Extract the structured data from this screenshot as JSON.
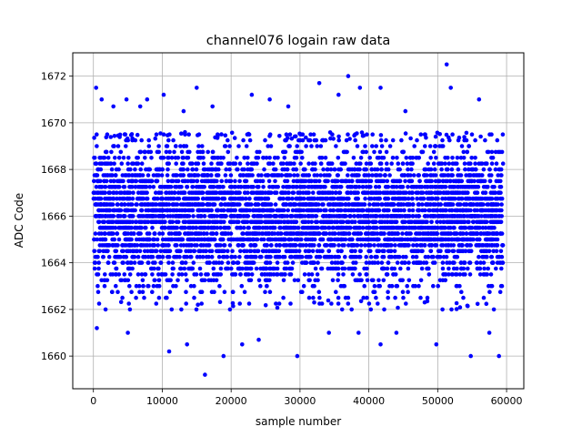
{
  "chart_data": {
    "type": "scatter",
    "title": "channel076 logain raw data",
    "xlabel": "sample number",
    "ylabel": "ADC Code",
    "xlim": [
      -3000,
      62500
    ],
    "ylim": [
      1658.6,
      1673.0
    ],
    "x_ticks": [
      0,
      10000,
      20000,
      30000,
      40000,
      50000,
      60000
    ],
    "y_ticks": [
      1660,
      1662,
      1664,
      1666,
      1668,
      1670,
      1672
    ],
    "x_tick_labels": [
      "0",
      "10000",
      "20000",
      "30000",
      "40000",
      "50000",
      "60000"
    ],
    "y_tick_labels": [
      "1660",
      "1662",
      "1664",
      "1666",
      "1668",
      "1670",
      "1672"
    ],
    "grid": true,
    "series": [
      {
        "color": "#0000ff",
        "marker": "dot",
        "sample_range": [
          0,
          59500
        ],
        "dense_band": [
          1662.0,
          1669.6
        ],
        "dense_mean": 1666.0,
        "outliers": [
          {
            "x": 400,
            "y": 1671.5
          },
          {
            "x": 1200,
            "y": 1671.0
          },
          {
            "x": 2900,
            "y": 1670.7
          },
          {
            "x": 4800,
            "y": 1671.0
          },
          {
            "x": 6800,
            "y": 1670.7
          },
          {
            "x": 7800,
            "y": 1671.0
          },
          {
            "x": 10200,
            "y": 1671.2
          },
          {
            "x": 13100,
            "y": 1670.5
          },
          {
            "x": 15000,
            "y": 1671.5
          },
          {
            "x": 17300,
            "y": 1670.7
          },
          {
            "x": 23000,
            "y": 1671.2
          },
          {
            "x": 25600,
            "y": 1671.0
          },
          {
            "x": 28300,
            "y": 1670.7
          },
          {
            "x": 32800,
            "y": 1671.7
          },
          {
            "x": 35600,
            "y": 1671.2
          },
          {
            "x": 37000,
            "y": 1672.0
          },
          {
            "x": 38700,
            "y": 1671.5
          },
          {
            "x": 41700,
            "y": 1671.5
          },
          {
            "x": 45300,
            "y": 1670.5
          },
          {
            "x": 51300,
            "y": 1672.5
          },
          {
            "x": 51900,
            "y": 1671.5
          },
          {
            "x": 56000,
            "y": 1671.0
          },
          {
            "x": 500,
            "y": 1661.2
          },
          {
            "x": 5000,
            "y": 1661.0
          },
          {
            "x": 11000,
            "y": 1660.2
          },
          {
            "x": 13600,
            "y": 1660.5
          },
          {
            "x": 16200,
            "y": 1659.2
          },
          {
            "x": 18900,
            "y": 1660.0
          },
          {
            "x": 21600,
            "y": 1660.5
          },
          {
            "x": 24000,
            "y": 1660.7
          },
          {
            "x": 29600,
            "y": 1660.0
          },
          {
            "x": 34200,
            "y": 1661.0
          },
          {
            "x": 38500,
            "y": 1661.0
          },
          {
            "x": 41700,
            "y": 1660.5
          },
          {
            "x": 44000,
            "y": 1661.0
          },
          {
            "x": 49800,
            "y": 1660.5
          },
          {
            "x": 54800,
            "y": 1660.0
          },
          {
            "x": 57500,
            "y": 1661.0
          },
          {
            "x": 58900,
            "y": 1660.0
          }
        ]
      }
    ]
  }
}
